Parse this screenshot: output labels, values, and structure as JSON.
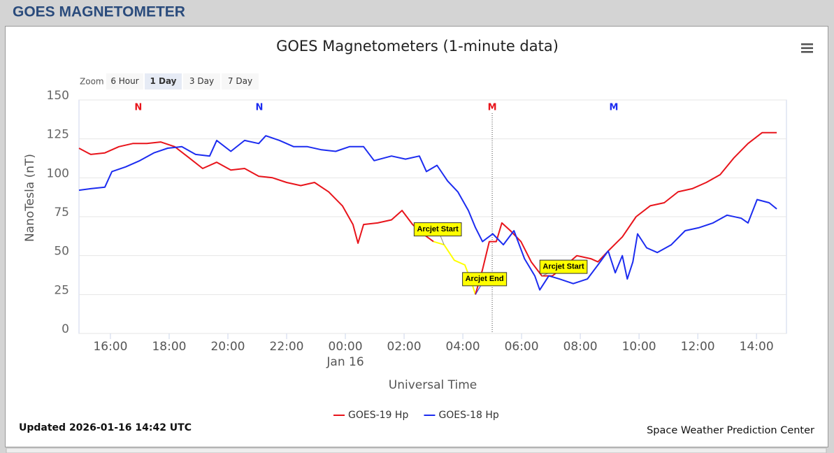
{
  "header": {
    "title": "GOES MAGNETOMETER"
  },
  "zoom": {
    "label": "Zoom",
    "buttons": [
      "6 Hour",
      "1 Day",
      "3 Day",
      "7 Day"
    ],
    "selected": 1
  },
  "chart_data": {
    "type": "line",
    "title": "GOES Magnetometers (1-minute data)",
    "x_label": "Universal Time",
    "y_label": "NanoTesla (nT)",
    "xlim": [
      -9.07,
      15.02
    ],
    "ylim": [
      0,
      150
    ],
    "xticks": [
      {
        "value": -8,
        "label": "16:00"
      },
      {
        "value": -6,
        "label": "18:00"
      },
      {
        "value": -4,
        "label": "20:00"
      },
      {
        "value": -2,
        "label": "22:00"
      },
      {
        "value": 0,
        "label": "00:00"
      },
      {
        "value": 2,
        "label": "02:00"
      },
      {
        "value": 4,
        "label": "04:00"
      },
      {
        "value": 6,
        "label": "06:00"
      },
      {
        "value": 8,
        "label": "08:00"
      },
      {
        "value": 10,
        "label": "10:00"
      },
      {
        "value": 12,
        "label": "12:00"
      },
      {
        "value": 14,
        "label": "14:00"
      }
    ],
    "xdate_label": {
      "value": 0,
      "label": "Jan 16"
    },
    "yticks": [
      0,
      25,
      50,
      75,
      100,
      125,
      150
    ],
    "grid": true,
    "series": [
      {
        "name": "GOES-19 Hp",
        "color": "#e8141b",
        "x": [
          -9.07,
          -8.67,
          -8.19,
          -7.71,
          -7.24,
          -6.76,
          -6.29,
          -5.81,
          -5.33,
          -4.86,
          -4.38,
          -3.9,
          -3.43,
          -2.95,
          -2.48,
          -2.0,
          -1.52,
          -1.05,
          -0.57,
          -0.1,
          0.26,
          0.43,
          0.62,
          1.1,
          1.57,
          1.93,
          2.29,
          2.64,
          3.0,
          3.36,
          3.71,
          4.07,
          4.31,
          4.43,
          4.67,
          4.9,
          5.14,
          5.33,
          5.62,
          5.98,
          6.33,
          6.69,
          7.05,
          7.52,
          7.88,
          8.36,
          8.6,
          8.95,
          9.43,
          9.9,
          10.38,
          10.86,
          11.33,
          11.81,
          12.29,
          12.76,
          13.24,
          13.71,
          14.19,
          14.69
        ],
        "values": [
          119,
          115,
          116,
          120,
          122,
          122,
          123,
          120,
          113,
          106,
          110,
          105,
          106,
          101,
          100,
          97,
          95,
          97,
          91,
          82,
          70,
          58,
          70,
          71,
          73,
          79,
          70,
          64,
          59,
          57,
          47,
          44,
          32,
          25,
          41,
          59,
          59,
          71,
          66,
          59,
          46,
          37,
          37,
          44,
          50,
          48,
          46,
          53,
          62,
          75,
          82,
          84,
          91,
          93,
          97,
          102,
          113,
          122,
          129,
          129
        ]
      },
      {
        "name": "GOES-18 Hp",
        "color": "#1c2cf0",
        "x": [
          -9.07,
          -8.67,
          -8.19,
          -7.95,
          -7.48,
          -7.0,
          -6.52,
          -6.05,
          -5.57,
          -5.1,
          -4.62,
          -4.38,
          -3.9,
          -3.43,
          -2.95,
          -2.71,
          -2.24,
          -1.76,
          -1.29,
          -0.81,
          -0.33,
          0.14,
          0.62,
          0.98,
          1.57,
          2.05,
          2.52,
          2.76,
          3.12,
          3.48,
          3.83,
          4.19,
          4.43,
          4.67,
          5.02,
          5.38,
          5.74,
          6.1,
          6.45,
          6.62,
          6.93,
          7.29,
          7.76,
          8.24,
          8.6,
          8.95,
          9.19,
          9.43,
          9.6,
          9.79,
          9.95,
          10.26,
          10.62,
          11.1,
          11.57,
          12.05,
          12.52,
          13.0,
          13.48,
          13.71,
          14.02,
          14.43,
          14.69
        ],
        "values": [
          92,
          93,
          94,
          104,
          107,
          111,
          116,
          119,
          120,
          115,
          114,
          124,
          117,
          124,
          122,
          127,
          124,
          120,
          120,
          118,
          117,
          120,
          120,
          111,
          114,
          112,
          114,
          104,
          108,
          98,
          91,
          79,
          68,
          59,
          64,
          57,
          66,
          48,
          37,
          28,
          37,
          35,
          32,
          35,
          44,
          53,
          39,
          50,
          35,
          46,
          64,
          55,
          52,
          57,
          66,
          68,
          71,
          76,
          74,
          71,
          86,
          84,
          80
        ]
      }
    ],
    "highlight_color": "#ffff00",
    "annotations": [
      {
        "text": "Arcjet Start",
        "x": 3.36,
        "y": 57
      },
      {
        "text": "Arcjet End",
        "x": 4.43,
        "y": 25
      },
      {
        "text": "Arcjet Start",
        "x": 6.69,
        "y": 37
      }
    ],
    "markers": [
      {
        "label": "N",
        "x": -7.05,
        "color": "#e8141b"
      },
      {
        "label": "N",
        "x": -2.93,
        "color": "#1c2cf0"
      },
      {
        "label": "M",
        "x": 5.0,
        "color": "#e8141b",
        "dotted_line": true
      },
      {
        "label": "M",
        "x": 9.14,
        "color": "#1c2cf0"
      }
    ],
    "legend": "bottom"
  },
  "footer": {
    "updated": "Updated 2026-01-16 14:42 UTC",
    "credit": "Space Weather Prediction Center"
  }
}
